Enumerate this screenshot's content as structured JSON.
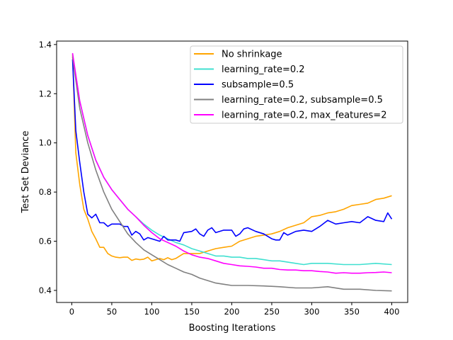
{
  "chart_data": {
    "type": "line",
    "title": "",
    "xlabel": "Boosting Iterations",
    "ylabel": "Test Set Deviance",
    "xlim": [
      -18.95,
      419.95
    ],
    "ylim": [
      0.351,
      1.414
    ],
    "xticks": [
      0,
      50,
      100,
      150,
      200,
      250,
      300,
      350,
      400
    ],
    "xtick_labels": [
      "0",
      "50",
      "100",
      "150",
      "200",
      "250",
      "300",
      "350",
      "400"
    ],
    "yticks": [
      0.4,
      0.6,
      0.8,
      1.0,
      1.2,
      1.4
    ],
    "ytick_labels": [
      "0.4",
      "0.6",
      "0.8",
      "1.0",
      "1.2",
      "1.4"
    ],
    "grid": false,
    "legend_position": "top-right",
    "series": [
      {
        "name": "No shrinkage",
        "color": "#ffa500",
        "x": [
          1,
          5,
          10,
          15,
          20,
          25,
          30,
          35,
          40,
          45,
          50,
          55,
          60,
          65,
          70,
          75,
          80,
          85,
          90,
          95,
          100,
          105,
          110,
          115,
          120,
          125,
          130,
          140,
          150,
          160,
          170,
          180,
          190,
          200,
          210,
          220,
          230,
          240,
          250,
          260,
          270,
          280,
          290,
          300,
          310,
          320,
          330,
          340,
          350,
          360,
          370,
          380,
          390,
          400
        ],
        "y": [
          1.36,
          0.96,
          0.83,
          0.73,
          0.69,
          0.64,
          0.61,
          0.575,
          0.575,
          0.55,
          0.54,
          0.535,
          0.533,
          0.535,
          0.535,
          0.522,
          0.528,
          0.525,
          0.527,
          0.535,
          0.52,
          0.525,
          0.53,
          0.525,
          0.533,
          0.525,
          0.53,
          0.55,
          0.55,
          0.55,
          0.56,
          0.57,
          0.575,
          0.58,
          0.6,
          0.61,
          0.62,
          0.625,
          0.63,
          0.64,
          0.655,
          0.665,
          0.675,
          0.7,
          0.705,
          0.715,
          0.72,
          0.73,
          0.745,
          0.75,
          0.755,
          0.77,
          0.775,
          0.785
        ]
      },
      {
        "name": "learning_rate=0.2",
        "color": "#40e0d0",
        "x": [
          1,
          10,
          20,
          30,
          40,
          50,
          60,
          70,
          80,
          90,
          100,
          110,
          120,
          130,
          140,
          150,
          160,
          170,
          180,
          190,
          200,
          210,
          220,
          230,
          240,
          250,
          260,
          270,
          280,
          290,
          300,
          320,
          340,
          360,
          380,
          400
        ],
        "y": [
          1.36,
          1.17,
          1.03,
          0.93,
          0.86,
          0.81,
          0.77,
          0.73,
          0.7,
          0.67,
          0.645,
          0.625,
          0.61,
          0.595,
          0.585,
          0.57,
          0.56,
          0.55,
          0.54,
          0.54,
          0.535,
          0.535,
          0.53,
          0.53,
          0.525,
          0.52,
          0.52,
          0.515,
          0.51,
          0.505,
          0.51,
          0.51,
          0.505,
          0.505,
          0.51,
          0.505
        ]
      },
      {
        "name": "subsample=0.5",
        "color": "#0000ff",
        "x": [
          1,
          5,
          10,
          15,
          20,
          25,
          30,
          35,
          40,
          45,
          50,
          55,
          60,
          65,
          70,
          75,
          80,
          85,
          90,
          95,
          100,
          110,
          115,
          120,
          130,
          135,
          140,
          150,
          155,
          160,
          165,
          170,
          175,
          180,
          190,
          200,
          205,
          210,
          215,
          220,
          230,
          240,
          250,
          255,
          260,
          265,
          270,
          280,
          290,
          300,
          310,
          320,
          330,
          340,
          350,
          360,
          370,
          380,
          390,
          395,
          400
        ],
        "y": [
          1.34,
          1.05,
          0.92,
          0.8,
          0.71,
          0.695,
          0.71,
          0.675,
          0.675,
          0.66,
          0.67,
          0.67,
          0.67,
          0.66,
          0.66,
          0.625,
          0.64,
          0.63,
          0.605,
          0.615,
          0.61,
          0.6,
          0.62,
          0.605,
          0.605,
          0.6,
          0.635,
          0.64,
          0.65,
          0.63,
          0.62,
          0.645,
          0.655,
          0.635,
          0.645,
          0.645,
          0.62,
          0.63,
          0.65,
          0.655,
          0.64,
          0.63,
          0.61,
          0.605,
          0.605,
          0.635,
          0.625,
          0.64,
          0.645,
          0.64,
          0.66,
          0.685,
          0.67,
          0.675,
          0.68,
          0.675,
          0.7,
          0.685,
          0.68,
          0.715,
          0.69
        ]
      },
      {
        "name": "learning_rate=0.2, subsample=0.5",
        "color": "#808080",
        "x": [
          1,
          10,
          20,
          30,
          40,
          50,
          60,
          70,
          80,
          90,
          100,
          110,
          120,
          130,
          140,
          150,
          160,
          170,
          180,
          190,
          200,
          220,
          240,
          260,
          280,
          300,
          320,
          340,
          360,
          380,
          400
        ],
        "y": [
          1.35,
          1.14,
          1.0,
          0.89,
          0.8,
          0.73,
          0.68,
          0.63,
          0.595,
          0.565,
          0.545,
          0.525,
          0.505,
          0.49,
          0.475,
          0.465,
          0.45,
          0.44,
          0.43,
          0.425,
          0.42,
          0.42,
          0.418,
          0.415,
          0.41,
          0.41,
          0.415,
          0.405,
          0.405,
          0.4,
          0.398
        ]
      },
      {
        "name": "learning_rate=0.2, max_features=2",
        "color": "#ff00ff",
        "x": [
          1,
          10,
          20,
          30,
          40,
          50,
          60,
          70,
          80,
          90,
          100,
          110,
          120,
          130,
          140,
          150,
          160,
          170,
          180,
          190,
          200,
          210,
          220,
          230,
          240,
          250,
          260,
          270,
          280,
          290,
          300,
          310,
          320,
          330,
          340,
          350,
          360,
          370,
          380,
          390,
          400
        ],
        "y": [
          1.365,
          1.17,
          1.03,
          0.93,
          0.86,
          0.81,
          0.77,
          0.73,
          0.7,
          0.665,
          0.635,
          0.61,
          0.595,
          0.58,
          0.56,
          0.545,
          0.535,
          0.53,
          0.52,
          0.51,
          0.505,
          0.5,
          0.498,
          0.495,
          0.49,
          0.49,
          0.485,
          0.483,
          0.483,
          0.48,
          0.48,
          0.477,
          0.475,
          0.47,
          0.472,
          0.47,
          0.47,
          0.472,
          0.473,
          0.475,
          0.472
        ]
      }
    ]
  }
}
